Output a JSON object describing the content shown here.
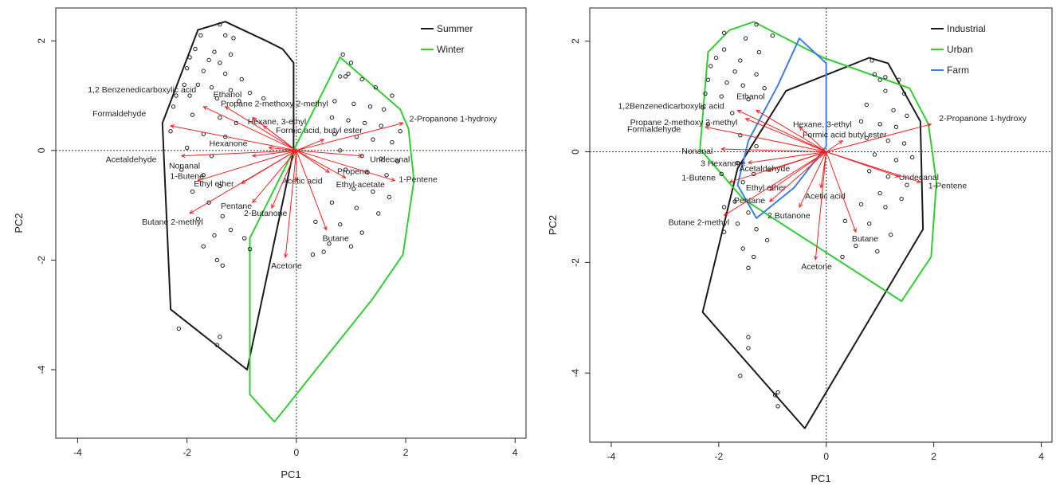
{
  "chart_data": [
    {
      "type": "scatter",
      "subtype": "pca-biplot",
      "title": "",
      "xlabel": "PC1",
      "ylabel": "PC2",
      "xlim": [
        -4.4,
        4.2
      ],
      "ylim": [
        -5.25,
        2.6
      ],
      "xticks": [
        -4,
        -2,
        0,
        2,
        4
      ],
      "yticks": [
        -4,
        -2,
        0,
        2
      ],
      "grid": false,
      "reference_lines": [
        0,
        0
      ],
      "legend_position": "top-right",
      "legend": [
        {
          "name": "Summer",
          "color": "#1a1a1a"
        },
        {
          "name": "Winter",
          "color": "#33cc33"
        }
      ],
      "hulls": [
        {
          "name": "Summer",
          "color": "#1a1a1a",
          "points": [
            [
              -1.3,
              2.35
            ],
            [
              -0.55,
              2.0
            ],
            [
              -0.25,
              1.85
            ],
            [
              -0.05,
              1.6
            ],
            [
              -0.05,
              0.0
            ],
            [
              -0.9,
              -4.0
            ],
            [
              -2.3,
              -2.9
            ],
            [
              -2.45,
              0.5
            ],
            [
              -1.8,
              2.2
            ]
          ]
        },
        {
          "name": "Winter",
          "color": "#33cc33",
          "points": [
            [
              0.8,
              1.7
            ],
            [
              1.9,
              0.75
            ],
            [
              2.05,
              0.4
            ],
            [
              2.15,
              -0.55
            ],
            [
              1.95,
              -1.9
            ],
            [
              1.4,
              -2.7
            ],
            [
              -0.4,
              -4.95
            ],
            [
              -0.85,
              -4.45
            ],
            [
              -0.85,
              -1.6
            ],
            [
              0.8,
              1.7
            ]
          ]
        }
      ],
      "loadings": [
        {
          "label": "1,2 Benzenedicarboxylic acid",
          "x": -1.7,
          "y": 0.8
        },
        {
          "label": "Formaldehyde",
          "x": -2.3,
          "y": 0.45
        },
        {
          "label": "Ethanol",
          "x": -1.3,
          "y": 0.8
        },
        {
          "label": "Propane 2-methoxy 2-methyl",
          "x": -0.8,
          "y": 0.6
        },
        {
          "label": "Hexane, 3-ethyl",
          "x": -0.6,
          "y": 0.45
        },
        {
          "label": "Formic acid, butyl ester",
          "x": 0.5,
          "y": 0.2
        },
        {
          "label": "2-Propanone 1-hydroxy",
          "x": 1.95,
          "y": 0.5
        },
        {
          "label": "Hexanone",
          "x": -0.5,
          "y": 0.05
        },
        {
          "label": "Acetaldehyde",
          "x": -2.1,
          "y": -0.1
        },
        {
          "label": "Nonanal",
          "x": -0.8,
          "y": -0.1
        },
        {
          "label": "Undecanal",
          "x": 1.2,
          "y": -0.1
        },
        {
          "label": "Propene",
          "x": 0.6,
          "y": -0.4
        },
        {
          "label": "1-Pentene",
          "x": 1.8,
          "y": -0.55
        },
        {
          "label": "Acetic acid",
          "x": 0.0,
          "y": -0.55
        },
        {
          "label": "Ethyl-acetate",
          "x": 0.9,
          "y": -0.5
        },
        {
          "label": "1-Butene",
          "x": -1.8,
          "y": -0.55
        },
        {
          "label": "Ethyl ether",
          "x": -1.0,
          "y": -0.6
        },
        {
          "label": "Pentane",
          "x": -0.8,
          "y": -0.95
        },
        {
          "label": "2-Butanone",
          "x": -0.45,
          "y": -1.05
        },
        {
          "label": "Butane 2-methyl",
          "x": -1.95,
          "y": -1.15
        },
        {
          "label": "Butane",
          "x": 0.55,
          "y": -1.45
        },
        {
          "label": "Acetone",
          "x": -0.2,
          "y": -1.95
        }
      ],
      "points": [
        [
          -1.4,
          2.3
        ],
        [
          -1.75,
          2.1
        ],
        [
          -1.3,
          2.1
        ],
        [
          -1.15,
          2.05
        ],
        [
          -1.85,
          1.85
        ],
        [
          -1.5,
          1.8
        ],
        [
          -1.2,
          1.75
        ],
        [
          -1.95,
          1.7
        ],
        [
          -1.6,
          1.65
        ],
        [
          -1.4,
          1.6
        ],
        [
          -2.0,
          1.5
        ],
        [
          -1.7,
          1.45
        ],
        [
          -1.3,
          1.4
        ],
        [
          -1.0,
          1.3
        ],
        [
          -2.05,
          1.2
        ],
        [
          -1.8,
          1.2
        ],
        [
          -1.55,
          1.15
        ],
        [
          -1.2,
          1.1
        ],
        [
          -0.85,
          1.05
        ],
        [
          -2.2,
          1.0
        ],
        [
          -1.95,
          1.0
        ],
        [
          -1.45,
          0.95
        ],
        [
          -1.05,
          0.9
        ],
        [
          -0.6,
          0.95
        ],
        [
          -2.25,
          0.8
        ],
        [
          -1.9,
          0.65
        ],
        [
          -1.4,
          0.6
        ],
        [
          -1.1,
          0.5
        ],
        [
          -2.3,
          0.35
        ],
        [
          -1.7,
          0.3
        ],
        [
          -1.3,
          0.25
        ],
        [
          -2.0,
          0.05
        ],
        [
          -1.55,
          -0.1
        ],
        [
          -2.1,
          -0.35
        ],
        [
          -1.7,
          -0.45
        ],
        [
          -1.4,
          -0.65
        ],
        [
          -1.9,
          -0.75
        ],
        [
          -1.6,
          -0.95
        ],
        [
          -1.35,
          -1.2
        ],
        [
          -1.8,
          -1.25
        ],
        [
          -1.2,
          -1.45
        ],
        [
          -1.5,
          -1.55
        ],
        [
          -0.95,
          -1.6
        ],
        [
          -1.7,
          -1.75
        ],
        [
          -0.85,
          -1.8
        ],
        [
          -1.35,
          -2.1
        ],
        [
          -1.45,
          -2.0
        ],
        [
          -1.4,
          -3.4
        ],
        [
          -1.45,
          -3.55
        ],
        [
          -2.15,
          -3.25
        ],
        [
          0.85,
          1.75
        ],
        [
          1.0,
          1.6
        ],
        [
          0.8,
          1.35
        ],
        [
          0.9,
          1.35
        ],
        [
          0.95,
          1.4
        ],
        [
          1.2,
          1.3
        ],
        [
          1.45,
          1.15
        ],
        [
          1.75,
          1.0
        ],
        [
          0.7,
          0.9
        ],
        [
          1.05,
          0.85
        ],
        [
          1.35,
          0.8
        ],
        [
          1.6,
          0.75
        ],
        [
          0.65,
          0.6
        ],
        [
          0.95,
          0.55
        ],
        [
          1.25,
          0.5
        ],
        [
          1.55,
          0.45
        ],
        [
          1.9,
          0.35
        ],
        [
          0.7,
          0.3
        ],
        [
          1.1,
          0.25
        ],
        [
          1.4,
          0.2
        ],
        [
          1.75,
          0.15
        ],
        [
          0.8,
          0.0
        ],
        [
          1.2,
          -0.1
        ],
        [
          1.55,
          -0.15
        ],
        [
          1.85,
          -0.2
        ],
        [
          0.9,
          -0.35
        ],
        [
          1.3,
          -0.4
        ],
        [
          1.65,
          -0.45
        ],
        [
          1.05,
          -0.7
        ],
        [
          1.4,
          -0.75
        ],
        [
          1.7,
          -0.85
        ],
        [
          0.65,
          -0.95
        ],
        [
          1.1,
          -1.05
        ],
        [
          1.5,
          -1.15
        ],
        [
          0.35,
          -1.3
        ],
        [
          0.8,
          -1.35
        ],
        [
          1.2,
          -1.5
        ],
        [
          0.6,
          -1.7
        ],
        [
          1.0,
          -1.75
        ],
        [
          0.3,
          -1.9
        ],
        [
          0.5,
          -1.85
        ]
      ]
    },
    {
      "type": "scatter",
      "subtype": "pca-biplot",
      "title": "",
      "xlabel": "PC1",
      "ylabel": "PC2",
      "xlim": [
        -4.4,
        4.2
      ],
      "ylim": [
        -5.25,
        2.6
      ],
      "xticks": [
        -4,
        -2,
        0,
        2,
        4
      ],
      "yticks": [
        -4,
        -2,
        0,
        2
      ],
      "grid": false,
      "reference_lines": [
        0,
        0
      ],
      "legend_position": "top-right",
      "legend": [
        {
          "name": "Industrial",
          "color": "#1a1a1a"
        },
        {
          "name": "Urban",
          "color": "#33cc33"
        },
        {
          "name": "Farm",
          "color": "#3d7fe0"
        }
      ],
      "hulls": [
        {
          "name": "Industrial",
          "color": "#1a1a1a",
          "points": [
            [
              0.8,
              1.7
            ],
            [
              1.15,
              1.6
            ],
            [
              1.75,
              0.55
            ],
            [
              1.8,
              -1.4
            ],
            [
              -0.4,
              -5.0
            ],
            [
              -2.3,
              -2.9
            ],
            [
              -1.65,
              -0.3
            ],
            [
              -0.75,
              1.1
            ],
            [
              0.8,
              1.7
            ]
          ]
        },
        {
          "name": "Urban",
          "color": "#33cc33",
          "points": [
            [
              -1.35,
              2.35
            ],
            [
              -0.05,
              1.7
            ],
            [
              1.55,
              1.15
            ],
            [
              1.9,
              0.5
            ],
            [
              2.05,
              -0.55
            ],
            [
              1.95,
              -1.9
            ],
            [
              1.4,
              -2.7
            ],
            [
              -1.55,
              -0.85
            ],
            [
              -2.35,
              0.05
            ],
            [
              -2.2,
              1.8
            ],
            [
              -1.8,
              2.2
            ],
            [
              -1.35,
              2.35
            ]
          ]
        },
        {
          "name": "Farm",
          "color": "#3d7fe0",
          "points": [
            [
              -0.5,
              2.05
            ],
            [
              0.0,
              1.6
            ],
            [
              0.0,
              0.1
            ],
            [
              -0.6,
              -0.65
            ],
            [
              -1.3,
              -1.2
            ],
            [
              -1.65,
              -0.6
            ],
            [
              -1.45,
              0.2
            ],
            [
              -0.9,
              1.2
            ],
            [
              -0.5,
              2.05
            ]
          ]
        }
      ],
      "loadings": [
        {
          "label": "1,2Benzenedicarboxylic acid",
          "x": -1.65,
          "y": 0.75
        },
        {
          "label": "Ethanol",
          "x": -1.3,
          "y": 0.75
        },
        {
          "label": "Propane 2-methoxy 2-methyl",
          "x": -1.5,
          "y": 0.6
        },
        {
          "label": "Hexane, 3-ethyl",
          "x": -0.5,
          "y": 0.45
        },
        {
          "label": "Formaldehyde",
          "x": -2.25,
          "y": 0.45
        },
        {
          "label": "Formic acid butyl ester",
          "x": 0.3,
          "y": 0.2
        },
        {
          "label": "2-Propanone 1-hydroxy",
          "x": 1.95,
          "y": 0.5
        },
        {
          "label": "Nonanal",
          "x": -1.95,
          "y": 0.05
        },
        {
          "label": "3 Hexanone",
          "x": -1.45,
          "y": -0.2
        },
        {
          "label": "Acetaldehyde",
          "x": -1.1,
          "y": -0.35
        },
        {
          "label": "1-Butene",
          "x": -1.8,
          "y": -0.55
        },
        {
          "label": "Ethyl ether",
          "x": -1.05,
          "y": -0.7
        },
        {
          "label": "Pentane",
          "x": -1.05,
          "y": -0.9
        },
        {
          "label": "Acetic acid",
          "x": -0.1,
          "y": -0.65
        },
        {
          "label": "2 Butanone",
          "x": -0.5,
          "y": -1.0
        },
        {
          "label": "Undecanal",
          "x": 1.35,
          "y": -0.45
        },
        {
          "label": "1-Pentene",
          "x": 1.75,
          "y": -0.55
        },
        {
          "label": "Butane 2-methyl",
          "x": -1.9,
          "y": -1.15
        },
        {
          "label": "Butane",
          "x": 0.55,
          "y": -1.45
        },
        {
          "label": "Acetone",
          "x": -0.2,
          "y": -1.95
        }
      ],
      "points": [
        [
          -1.3,
          2.3
        ],
        [
          -1.9,
          2.15
        ],
        [
          -1.5,
          2.05
        ],
        [
          -1.0,
          2.1
        ],
        [
          -1.9,
          1.85
        ],
        [
          -1.25,
          1.8
        ],
        [
          -2.05,
          1.7
        ],
        [
          -1.6,
          1.65
        ],
        [
          -2.15,
          1.55
        ],
        [
          -1.7,
          1.45
        ],
        [
          -1.3,
          1.4
        ],
        [
          -2.2,
          1.3
        ],
        [
          -1.85,
          1.25
        ],
        [
          -1.55,
          1.2
        ],
        [
          -1.15,
          1.15
        ],
        [
          -2.25,
          1.05
        ],
        [
          -1.95,
          1.0
        ],
        [
          -1.45,
          0.95
        ],
        [
          -2.3,
          0.8
        ],
        [
          -1.75,
          0.7
        ],
        [
          -2.2,
          0.5
        ],
        [
          -1.6,
          0.3
        ],
        [
          -1.3,
          0.1
        ],
        [
          -1.65,
          -0.2
        ],
        [
          -1.35,
          -0.4
        ],
        [
          -1.95,
          -0.4
        ],
        [
          -1.55,
          -0.55
        ],
        [
          -1.7,
          -0.9
        ],
        [
          -1.9,
          -1.0
        ],
        [
          -1.45,
          -1.1
        ],
        [
          -1.65,
          -1.3
        ],
        [
          -1.3,
          -1.4
        ],
        [
          -1.9,
          -1.45
        ],
        [
          -1.1,
          -1.6
        ],
        [
          -1.55,
          -1.75
        ],
        [
          -1.35,
          -1.9
        ],
        [
          -1.45,
          -2.1
        ],
        [
          -1.45,
          -3.35
        ],
        [
          -1.45,
          -3.55
        ],
        [
          -1.6,
          -4.05
        ],
        [
          -0.95,
          -4.4
        ],
        [
          -0.9,
          -4.35
        ],
        [
          -0.9,
          -4.6
        ],
        [
          0.85,
          1.65
        ],
        [
          0.9,
          1.4
        ],
        [
          1.0,
          1.3
        ],
        [
          1.1,
          1.35
        ],
        [
          1.35,
          1.3
        ],
        [
          1.1,
          1.1
        ],
        [
          1.45,
          1.05
        ],
        [
          0.75,
          0.85
        ],
        [
          1.25,
          0.75
        ],
        [
          1.5,
          0.65
        ],
        [
          0.65,
          0.55
        ],
        [
          1.0,
          0.5
        ],
        [
          1.3,
          0.45
        ],
        [
          0.75,
          0.25
        ],
        [
          1.15,
          0.2
        ],
        [
          1.45,
          0.15
        ],
        [
          0.9,
          -0.05
        ],
        [
          1.3,
          -0.15
        ],
        [
          1.6,
          -0.1
        ],
        [
          0.8,
          -0.35
        ],
        [
          1.15,
          -0.45
        ],
        [
          1.5,
          -0.6
        ],
        [
          1.0,
          -0.75
        ],
        [
          1.4,
          -0.85
        ],
        [
          0.65,
          -0.95
        ],
        [
          1.1,
          -1.0
        ],
        [
          0.35,
          -1.25
        ],
        [
          0.8,
          -1.3
        ],
        [
          1.2,
          -1.5
        ],
        [
          0.55,
          -1.7
        ],
        [
          0.95,
          -1.8
        ],
        [
          0.3,
          -1.9
        ]
      ]
    }
  ]
}
